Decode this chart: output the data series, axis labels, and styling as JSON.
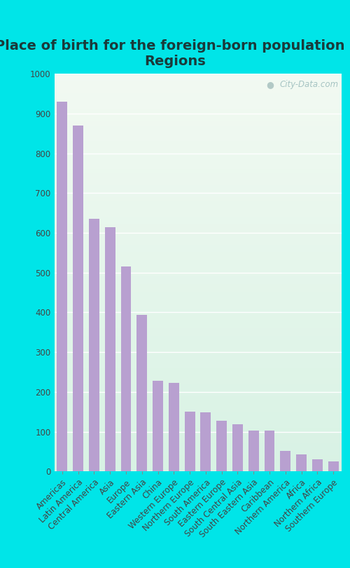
{
  "title": "Place of birth for the foreign-born population -\nRegions",
  "categories": [
    "Americas",
    "Latin America",
    "Central America",
    "Asia",
    "Europe",
    "Eastern Asia",
    "China",
    "Western Europe",
    "Northern Europe",
    "South America",
    "Eastern Europe",
    "South Central Asia",
    "South Eastern Asia",
    "Caribbean",
    "Northern America",
    "Africa",
    "Northern Africa",
    "Southern Europe"
  ],
  "values": [
    930,
    870,
    635,
    615,
    515,
    393,
    228,
    222,
    150,
    148,
    128,
    118,
    102,
    102,
    52,
    43,
    30,
    25
  ],
  "bar_color": "#b8a0d0",
  "bg_outer": "#00e5e8",
  "grid_color": "#ffffff",
  "ylim": [
    0,
    1000
  ],
  "yticks": [
    0,
    100,
    200,
    300,
    400,
    500,
    600,
    700,
    800,
    900,
    1000
  ],
  "title_fontsize": 14,
  "tick_fontsize": 8.5,
  "watermark": "City-Data.com",
  "title_color": "#1a3a3a"
}
